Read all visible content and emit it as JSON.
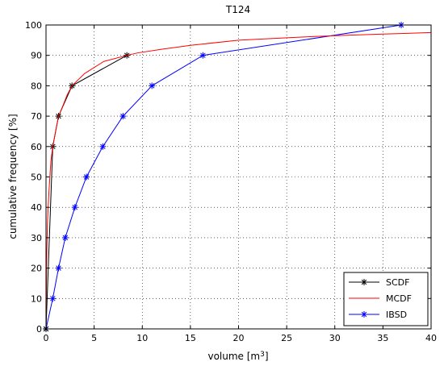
{
  "chart_data": {
    "type": "line",
    "title": "T124",
    "xlabel": "volume [m",
    "xlabel_sup": "3",
    "xlabel_end": "]",
    "ylabel": "cumulative frequency [%]",
    "xlim": [
      0,
      40
    ],
    "ylim": [
      0,
      100
    ],
    "xticks": [
      0,
      5,
      10,
      15,
      20,
      25,
      30,
      35,
      40
    ],
    "yticks": [
      0,
      10,
      20,
      30,
      40,
      50,
      60,
      70,
      80,
      90,
      100
    ],
    "grid": true,
    "grid_style": "dotted",
    "legend_position": "bottom-right",
    "series": [
      {
        "name": "SCDF",
        "color": "#000000",
        "marker": "*",
        "x": [
          0,
          0.7,
          1.3,
          2.7,
          8.4
        ],
        "y": [
          0,
          60,
          70,
          80,
          90
        ]
      },
      {
        "name": "MCDF",
        "color": "#ff0000",
        "marker": "none",
        "x": [
          0,
          0.05,
          0.15,
          0.3,
          0.5,
          0.7,
          1.0,
          1.3,
          1.7,
          2.2,
          2.7,
          4.0,
          6.0,
          8.4,
          9.5,
          12.0,
          15.0,
          20.0,
          25.0,
          30.0,
          35.0,
          40.0
        ],
        "y": [
          0,
          20,
          35,
          45,
          55,
          60,
          65,
          70,
          73,
          77,
          80,
          84,
          88,
          90,
          90.8,
          92,
          93.3,
          95,
          95.8,
          96.5,
          97,
          97.5
        ]
      },
      {
        "name": "IBSD",
        "color": "#0000ff",
        "marker": "*",
        "x": [
          0,
          0.7,
          1.3,
          2.0,
          3.0,
          4.2,
          5.9,
          8.0,
          11.0,
          16.3,
          36.9
        ],
        "y": [
          0,
          10,
          20,
          30,
          40,
          50,
          60,
          70,
          80,
          90,
          100
        ]
      }
    ]
  }
}
